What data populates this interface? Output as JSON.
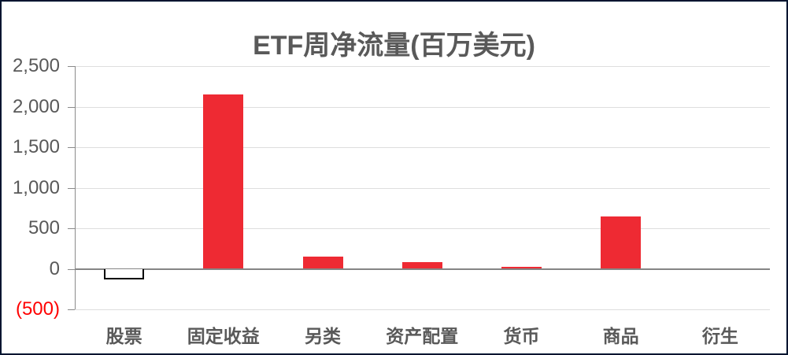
{
  "chart_data": {
    "type": "bar",
    "title": "ETF周净流量(百万美元)",
    "categories": [
      "股票",
      "固定收益",
      "另类",
      "资产配置",
      "货币",
      "商品",
      "衍生"
    ],
    "values": [
      -135,
      2150,
      150,
      80,
      20,
      650,
      0
    ],
    "xlabel": "",
    "ylabel": "",
    "unit": "百万美元",
    "ylim": [
      -500,
      2500
    ],
    "ytick_interval": 500,
    "ytick_labels": [
      "2,500",
      "2,000",
      "1,500",
      "1,000",
      "500",
      "0",
      "(500)"
    ],
    "grid": true,
    "legend": "none",
    "colors": {
      "positive_bar": "#ee2a33",
      "negative_bar_fill": "#ffffff",
      "negative_bar_border": "#000000",
      "negative_tick_label": "#ff0000",
      "axis_label": "#595959",
      "title": "#595959",
      "gridline": "#dedede",
      "zero_line": "#858585",
      "frame_border": "#02142f"
    }
  }
}
